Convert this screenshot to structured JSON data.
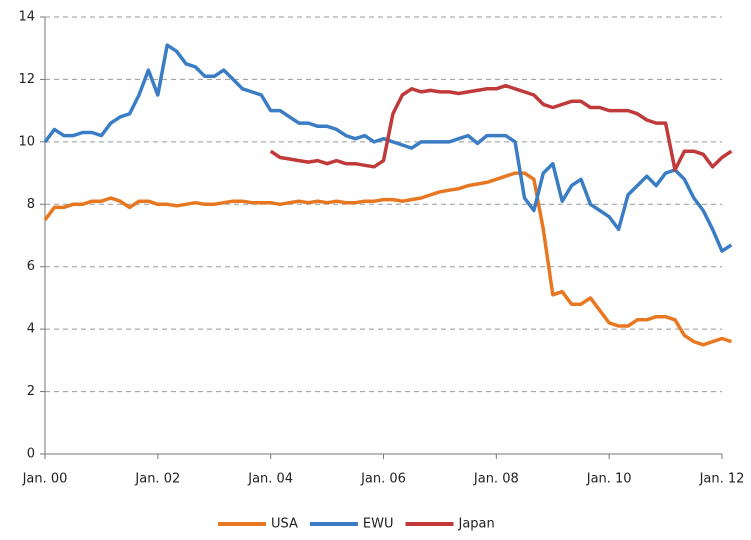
{
  "chart_data": {
    "type": "line",
    "categories": [
      "Jan. 00",
      null,
      null,
      null,
      null,
      null,
      null,
      null,
      null,
      null,
      null,
      null,
      "Jan. 02",
      null,
      null,
      null,
      null,
      null,
      null,
      null,
      null,
      null,
      null,
      null,
      "Jan. 04",
      null,
      null,
      null,
      null,
      null,
      null,
      null,
      null,
      null,
      null,
      null,
      "Jan. 06",
      null,
      null,
      null,
      null,
      null,
      null,
      null,
      null,
      null,
      null,
      null,
      "Jan. 08",
      null,
      null,
      null,
      null,
      null,
      null,
      null,
      null,
      null,
      null,
      null,
      "Jan. 10",
      null,
      null,
      null,
      null,
      null,
      null,
      null,
      null,
      null,
      null,
      null,
      "Jan. 12",
      null
    ],
    "series": [
      {
        "name": "USA",
        "color": "#e87722",
        "values": [
          7.5,
          7.9,
          7.9,
          8.0,
          8.0,
          8.1,
          8.1,
          8.2,
          8.1,
          7.9,
          8.1,
          8.1,
          8.0,
          8.0,
          7.95,
          8.0,
          8.05,
          8.0,
          8.0,
          8.05,
          8.1,
          8.1,
          8.05,
          8.05,
          8.05,
          8.0,
          8.05,
          8.1,
          8.05,
          8.1,
          8.05,
          8.1,
          8.05,
          8.05,
          8.1,
          8.1,
          8.15,
          8.15,
          8.1,
          8.15,
          8.2,
          8.3,
          8.4,
          8.45,
          8.5,
          8.6,
          8.65,
          8.7,
          8.8,
          8.9,
          9.0,
          9.0,
          8.8,
          7.2,
          5.1,
          5.2,
          4.8,
          4.8,
          5.0,
          4.6,
          4.2,
          4.1,
          4.1,
          4.3,
          4.3,
          4.4,
          4.4,
          4.3,
          3.8,
          3.6,
          3.5,
          3.6,
          3.7,
          3.6
        ]
      },
      {
        "name": "EWU",
        "color": "#3b7dc4",
        "values": [
          10.0,
          10.4,
          10.2,
          10.2,
          10.3,
          10.3,
          10.2,
          10.6,
          10.8,
          10.9,
          11.5,
          12.3,
          11.5,
          13.1,
          12.9,
          12.5,
          12.4,
          12.1,
          12.1,
          12.3,
          12.0,
          11.7,
          11.6,
          11.5,
          11.0,
          11.0,
          10.8,
          10.6,
          10.6,
          10.5,
          10.5,
          10.4,
          10.2,
          10.1,
          10.2,
          10.0,
          10.1,
          10.0,
          9.9,
          9.8,
          10.0,
          10.0,
          10.0,
          10.0,
          10.1,
          10.2,
          9.95,
          10.2,
          10.2,
          10.2,
          10.0,
          8.2,
          7.8,
          9.0,
          9.3,
          8.1,
          8.6,
          8.8,
          8.0,
          7.8,
          7.6,
          7.2,
          8.3,
          8.6,
          8.9,
          8.6,
          9.0,
          9.1,
          8.8,
          8.2,
          7.8,
          7.2,
          6.5,
          6.7
        ]
      },
      {
        "name": "Japan",
        "color": "#c0393b",
        "values": [
          null,
          null,
          null,
          null,
          null,
          null,
          null,
          null,
          null,
          null,
          null,
          null,
          null,
          null,
          null,
          null,
          null,
          null,
          null,
          null,
          null,
          null,
          null,
          null,
          9.7,
          9.5,
          9.45,
          9.4,
          9.35,
          9.4,
          9.3,
          9.4,
          9.3,
          9.3,
          9.25,
          9.2,
          9.4,
          10.9,
          11.5,
          11.7,
          11.6,
          11.65,
          11.6,
          11.6,
          11.55,
          11.6,
          11.65,
          11.7,
          11.7,
          11.8,
          11.7,
          11.6,
          11.5,
          11.2,
          11.1,
          11.2,
          11.3,
          11.3,
          11.1,
          11.1,
          11.0,
          11.0,
          11.0,
          10.9,
          10.7,
          10.6,
          10.6,
          9.1,
          9.7,
          9.7,
          9.6,
          9.2,
          9.5,
          9.7
        ]
      }
    ],
    "ylim": [
      0,
      14
    ],
    "yticks": [
      0,
      2,
      4,
      6,
      8,
      10,
      12,
      14
    ],
    "grid": true,
    "legend": "bottom"
  }
}
